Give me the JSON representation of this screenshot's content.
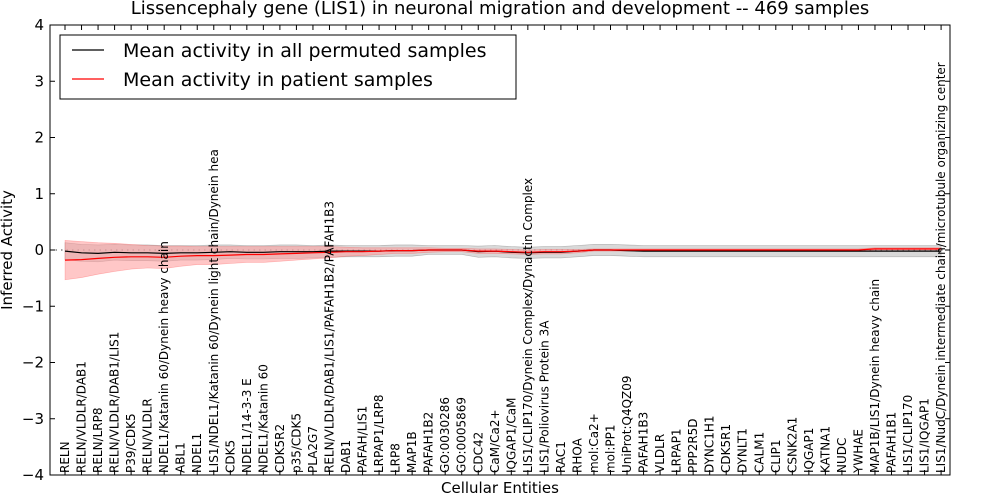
{
  "chart_data": {
    "type": "line",
    "title": "Lissencephaly gene (LIS1) in neuronal migration and development -- 469 samples",
    "xlabel": "Cellular Entities",
    "ylabel": "Inferred Activity",
    "ylim": [
      -4,
      4
    ],
    "yticks": [
      -4,
      -3,
      -2,
      -1,
      0,
      1,
      2,
      3,
      4
    ],
    "ytick_labels": [
      "−4",
      "−3",
      "−2",
      "−1",
      "0",
      "1",
      "2",
      "3",
      "4"
    ],
    "legend_position": "top-left",
    "categories": [
      "RELN",
      "RELN/VLDLR/DAB1",
      "RELN/LRP8",
      "RELN/VLDLR/DAB1/LIS1",
      "P39/CDK5",
      "RELN/VLDLR",
      "NDEL1/Katanin 60/Dynein heavy chain",
      "ABL1",
      "NDEL1",
      "LIS1/NDEL1/Katanin 60/Dynein light chain/Dynein hea",
      "CDK5",
      "NDEL1/14-3-3 E",
      "NDEL1/Katanin 60",
      "CDK5R2",
      "p35/CDK5",
      "PLA2G7",
      "RELN/VLDLR/DAB1/LIS1/PAFAH1B2/PAFAH1B3",
      "DAB1",
      "PAFAH/LIS1",
      "LRPAP1/LRP8",
      "LRP8",
      "MAP1B",
      "PAFAH1B2",
      "GO:0030286",
      "GO:0005869",
      "CDC42",
      "CaM/Ca2+",
      "IQGAP1/CaM",
      "LIS1/CLIP170/Dynein Complex/Dynactin Complex",
      "LIS1/Poliovirus Protein 3A",
      "RAC1",
      "RHOA",
      "mol:Ca2+",
      "mol:PP1",
      "UniProt:Q4QZ09",
      "PAFAH1B3",
      "VLDLR",
      "LRPAP1",
      "PPP2R5D",
      "DYNC1H1",
      "CDK5R1",
      "DYNLT1",
      "CALM1",
      "CLIP1",
      "CSNK2A1",
      "IQGAP1",
      "KATNA1",
      "NUDC",
      "YWHAE",
      "MAP1B/LIS1/Dynein heavy chain",
      "PAFAH1B1",
      "LIS1/CLIP170",
      "LIS1/IQGAP1",
      "LIS1/NudC/Dynein intermediate chain/microtubule organizing center"
    ],
    "series": [
      {
        "name": "Mean activity in all permuted samples",
        "color": "#000000",
        "band_color": "#bfbfbf",
        "values": [
          -0.02,
          -0.05,
          -0.06,
          -0.04,
          -0.05,
          -0.05,
          -0.06,
          -0.05,
          -0.05,
          -0.04,
          -0.03,
          -0.04,
          -0.04,
          -0.03,
          -0.03,
          -0.03,
          -0.02,
          -0.02,
          -0.02,
          -0.02,
          -0.01,
          -0.01,
          0.0,
          0.0,
          0.0,
          -0.03,
          -0.02,
          -0.04,
          -0.05,
          -0.04,
          -0.04,
          -0.02,
          0.0,
          0.0,
          -0.01,
          -0.02,
          -0.02,
          -0.02,
          -0.02,
          -0.02,
          -0.02,
          -0.02,
          -0.02,
          -0.02,
          -0.02,
          -0.02,
          -0.02,
          -0.02,
          -0.02,
          -0.02,
          -0.02,
          -0.02,
          -0.02,
          -0.02
        ],
        "band": [
          0.15,
          0.15,
          0.15,
          0.14,
          0.14,
          0.14,
          0.14,
          0.13,
          0.13,
          0.13,
          0.12,
          0.12,
          0.12,
          0.12,
          0.12,
          0.11,
          0.11,
          0.1,
          0.1,
          0.1,
          0.1,
          0.1,
          0.08,
          0.08,
          0.08,
          0.1,
          0.1,
          0.1,
          0.1,
          0.1,
          0.1,
          0.1,
          0.1,
          0.1,
          0.1,
          0.1,
          0.1,
          0.1,
          0.1,
          0.1,
          0.1,
          0.1,
          0.1,
          0.1,
          0.1,
          0.1,
          0.1,
          0.1,
          0.1,
          0.1,
          0.1,
          0.1,
          0.1,
          0.1
        ]
      },
      {
        "name": "Mean activity in patient samples",
        "color": "#ff0000",
        "band_color": "#ff9999",
        "values": [
          -0.18,
          -0.17,
          -0.15,
          -0.13,
          -0.12,
          -0.12,
          -0.13,
          -0.11,
          -0.1,
          -0.1,
          -0.09,
          -0.08,
          -0.08,
          -0.07,
          -0.06,
          -0.05,
          -0.04,
          -0.03,
          -0.03,
          -0.02,
          -0.01,
          -0.01,
          0.0,
          0.0,
          0.0,
          -0.02,
          -0.02,
          -0.03,
          -0.04,
          -0.03,
          -0.03,
          -0.02,
          0.0,
          0.0,
          0.0,
          0.0,
          0.0,
          0.0,
          0.0,
          0.0,
          0.0,
          0.0,
          0.0,
          0.0,
          0.0,
          0.0,
          0.0,
          0.0,
          0.0,
          0.02,
          0.02,
          0.02,
          0.02,
          0.02
        ],
        "band": [
          0.35,
          0.32,
          0.28,
          0.25,
          0.22,
          0.2,
          0.2,
          0.18,
          0.16,
          0.16,
          0.15,
          0.14,
          0.14,
          0.13,
          0.12,
          0.11,
          0.1,
          0.08,
          0.07,
          0.06,
          0.05,
          0.05,
          0.04,
          0.03,
          0.03,
          0.04,
          0.04,
          0.04,
          0.04,
          0.04,
          0.04,
          0.03,
          0.02,
          0.02,
          0.02,
          0.02,
          0.02,
          0.02,
          0.02,
          0.02,
          0.02,
          0.02,
          0.02,
          0.02,
          0.02,
          0.02,
          0.02,
          0.02,
          0.02,
          0.02,
          0.02,
          0.02,
          0.02,
          0.02
        ]
      }
    ]
  }
}
